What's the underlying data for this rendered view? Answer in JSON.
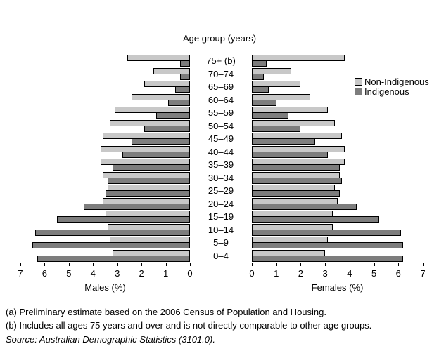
{
  "title": "Age group (years)",
  "legend": {
    "items": [
      {
        "label": "Non-Indigenous",
        "color": "#c8c8c8"
      },
      {
        "label": "Indigenous",
        "color": "#7d7d7d"
      }
    ]
  },
  "axes": {
    "left_label": "Males (%)",
    "right_label": "Females (%)",
    "left_ticks": [
      7,
      6,
      5,
      4,
      3,
      2,
      1,
      0
    ],
    "right_ticks": [
      0,
      1,
      2,
      3,
      4,
      5,
      6,
      7
    ]
  },
  "footnotes": {
    "a": "(a) Preliminary estimate based on the 2006 Census of Population and Housing.",
    "b": "(b) Includes all ages 75 years and over and is not directly comparable to other age groups.",
    "source": "Source: Australian Demographic Statistics (3101.0)."
  },
  "chart_data": {
    "type": "bar",
    "subtype": "population-pyramid",
    "title": "Age group (years)",
    "xlabel_left": "Males (%)",
    "xlabel_right": "Females (%)",
    "xlim": [
      0,
      7
    ],
    "grid": false,
    "legend_position": "right",
    "categories": [
      "75+ (b)",
      "70–74",
      "65–69",
      "60–64",
      "55–59",
      "50–54",
      "45–49",
      "40–44",
      "35–39",
      "30–34",
      "25–29",
      "20–24",
      "15–19",
      "10–14",
      "5–9",
      "0–4"
    ],
    "series": [
      {
        "name": "Males Non-Indigenous",
        "side": "left",
        "group": "Non-Indigenous",
        "values": [
          2.6,
          1.5,
          1.9,
          2.4,
          3.1,
          3.3,
          3.6,
          3.7,
          3.7,
          3.6,
          3.4,
          3.6,
          3.5,
          3.4,
          3.3,
          3.2
        ]
      },
      {
        "name": "Males Indigenous",
        "side": "left",
        "group": "Indigenous",
        "values": [
          0.4,
          0.4,
          0.6,
          0.9,
          1.4,
          1.9,
          2.4,
          2.8,
          3.2,
          3.4,
          3.5,
          4.4,
          5.5,
          6.4,
          6.5,
          6.3
        ]
      },
      {
        "name": "Females Non-Indigenous",
        "side": "right",
        "group": "Non-Indigenous",
        "values": [
          3.8,
          1.6,
          2.0,
          2.4,
          3.1,
          3.4,
          3.7,
          3.8,
          3.8,
          3.6,
          3.4,
          3.5,
          3.3,
          3.3,
          3.1,
          3.0
        ]
      },
      {
        "name": "Females Indigenous",
        "side": "right",
        "group": "Indigenous",
        "values": [
          0.6,
          0.5,
          0.7,
          1.0,
          1.5,
          2.0,
          2.6,
          3.1,
          3.6,
          3.7,
          3.6,
          4.3,
          5.2,
          6.1,
          6.2,
          6.2
        ]
      }
    ],
    "colors": {
      "non_indigenous": "#c8c8c8",
      "indigenous": "#7d7d7d"
    }
  }
}
